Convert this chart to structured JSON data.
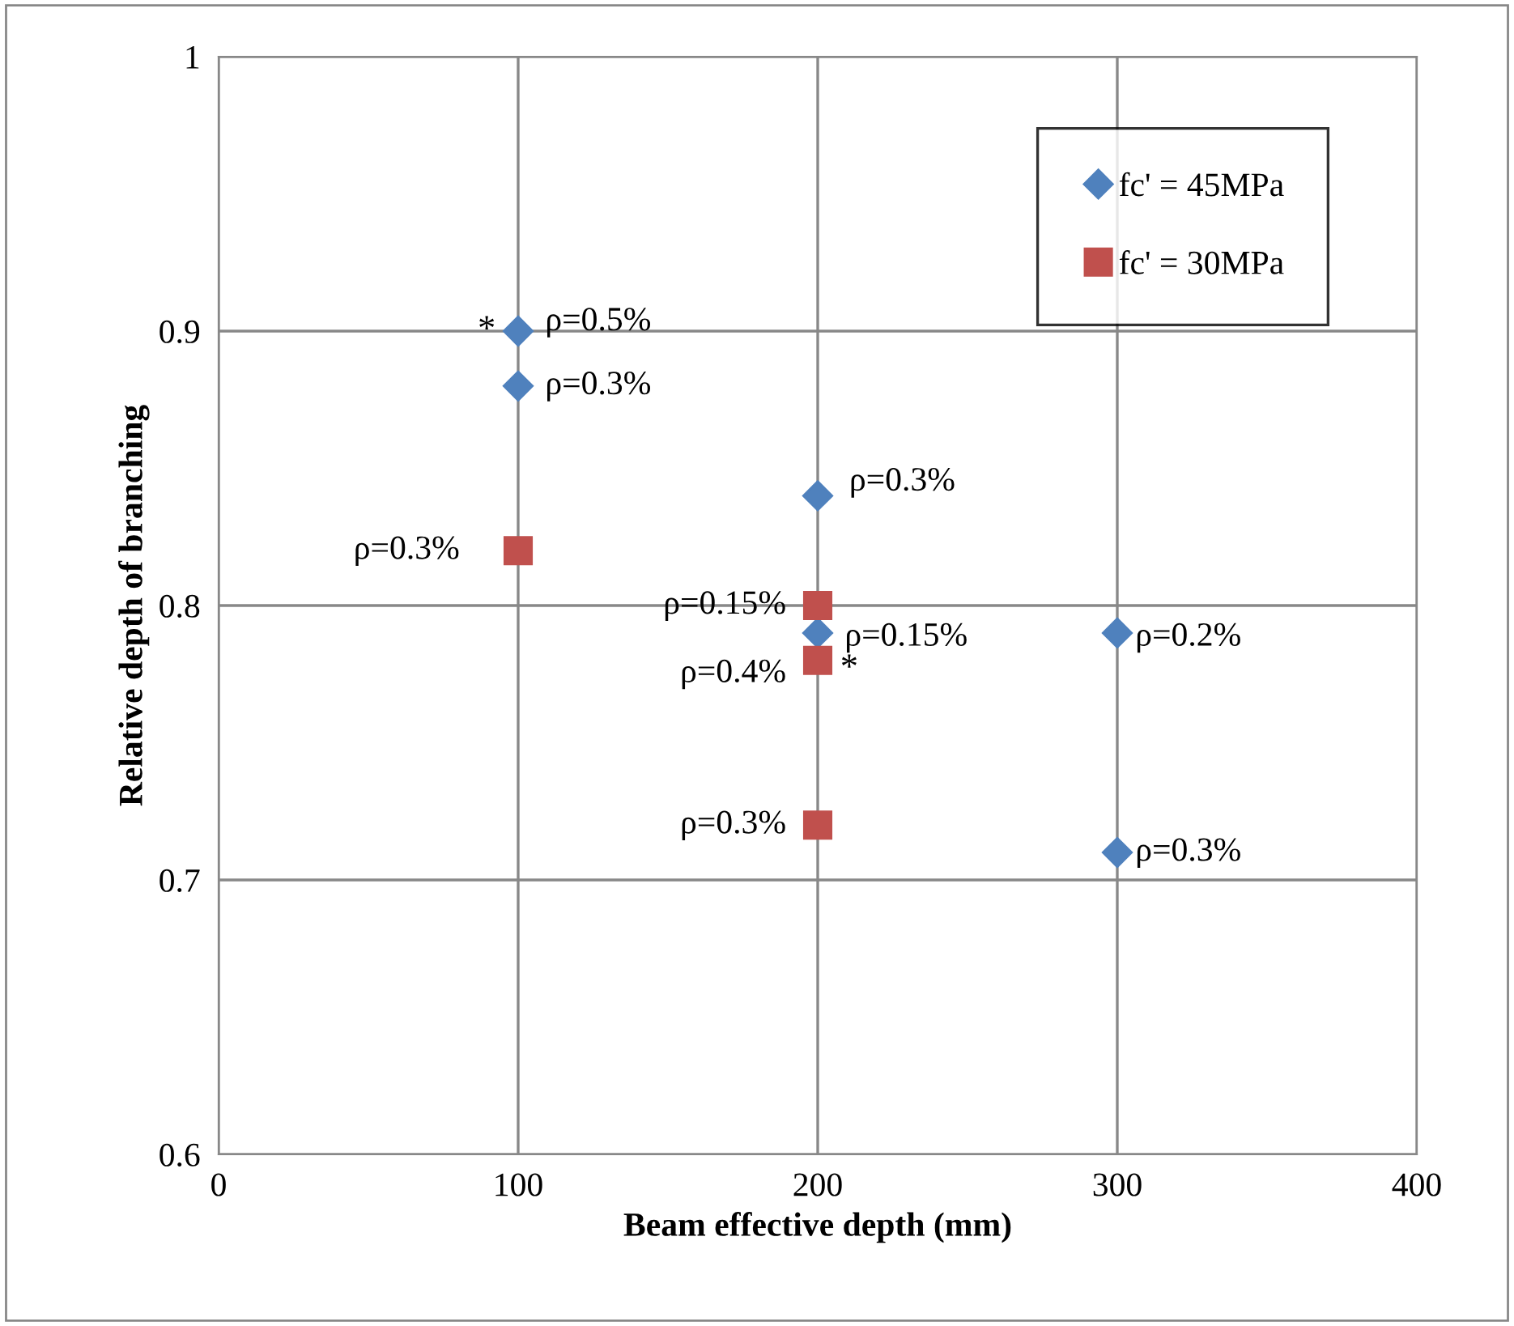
{
  "chart_data": {
    "type": "scatter",
    "xlabel": "Beam effective depth (mm)",
    "ylabel": "Relative depth of branching",
    "series": [
      {
        "name": "fc' = 45MPa",
        "color": "#4f81bd",
        "marker": "diamond",
        "x": [
          100,
          100,
          200,
          200,
          300,
          300
        ],
        "values": [
          0.9,
          0.88,
          0.84,
          0.79,
          0.79,
          0.71
        ]
      },
      {
        "name": "fc' = 30MPa",
        "color": "#c0504d",
        "marker": "square",
        "x": [
          100,
          200,
          200,
          200
        ],
        "values": [
          0.82,
          0.8,
          0.78,
          0.72
        ]
      }
    ],
    "annotations": [
      {
        "text": "ρ=0.5%",
        "x": 100,
        "y": 0.9
      },
      {
        "text": "ρ=0.3%",
        "x": 100,
        "y": 0.88
      },
      {
        "text": "ρ=0.3%",
        "x": 200,
        "y": 0.84
      },
      {
        "text": "ρ=0.15%",
        "x": 200,
        "y": 0.79
      },
      {
        "text": "ρ=0.2%",
        "x": 300,
        "y": 0.79
      },
      {
        "text": "ρ=0.3%",
        "x": 300,
        "y": 0.71
      },
      {
        "text": "ρ=0.3%",
        "x": 100,
        "y": 0.82
      },
      {
        "text": "ρ=0.15%",
        "x": 200,
        "y": 0.8
      },
      {
        "text": "ρ=0.4%",
        "x": 200,
        "y": 0.78
      },
      {
        "text": "ρ=0.3%",
        "x": 200,
        "y": 0.72
      },
      {
        "text": "*",
        "x": 100,
        "y": 0.9
      },
      {
        "text": "*",
        "x": 200,
        "y": 0.78
      }
    ],
    "xlim": [
      0,
      400
    ],
    "xticks": [
      0,
      100,
      200,
      300,
      400
    ],
    "ylim": [
      0.6,
      1
    ],
    "yticks": [
      0.6,
      0.7,
      0.8,
      0.9,
      1
    ],
    "grid": true,
    "legend": "top right"
  }
}
